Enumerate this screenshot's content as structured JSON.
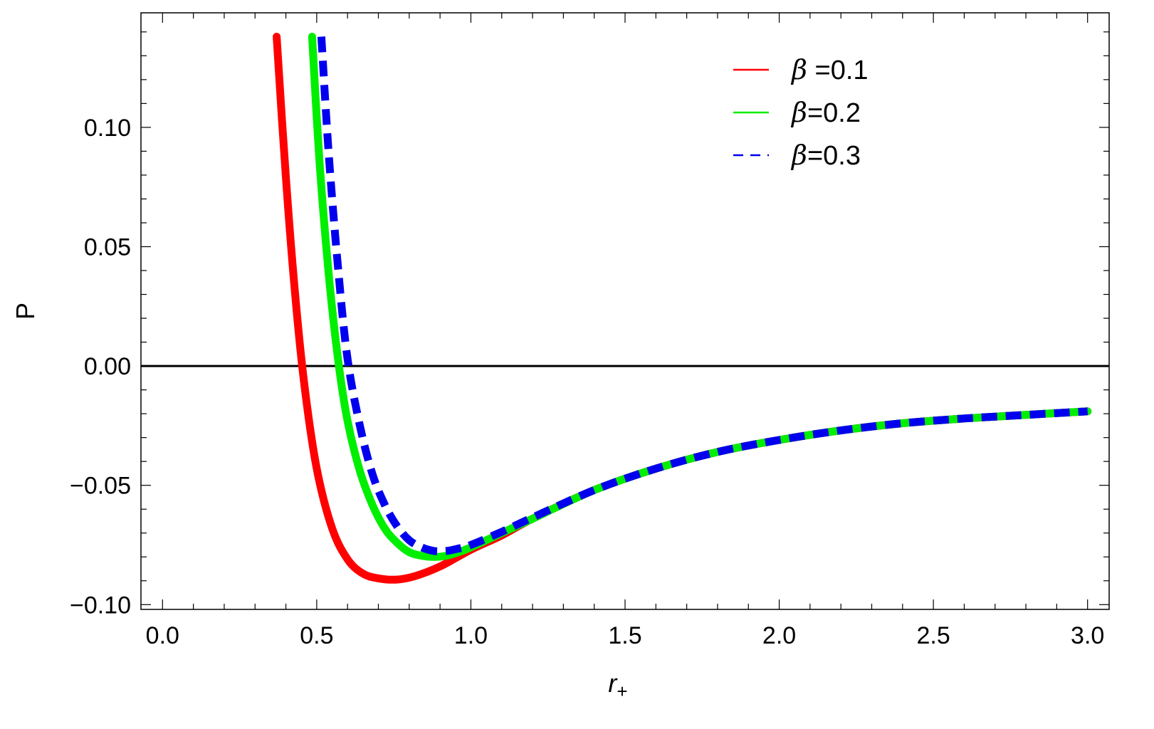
{
  "chart_data": {
    "type": "line",
    "title": "",
    "xlabel": "r",
    "xlabel_subscript": "+",
    "ylabel": "P",
    "xlim": [
      -0.07,
      3.07
    ],
    "ylim": [
      -0.102,
      0.148
    ],
    "x_ticks": [
      0.0,
      0.5,
      1.0,
      1.5,
      2.0,
      2.5,
      3.0
    ],
    "x_tick_labels": [
      "0.0",
      "0.5",
      "1.0",
      "1.5",
      "2.0",
      "2.5",
      "3.0"
    ],
    "y_ticks": [
      -0.1,
      -0.05,
      0.0,
      0.05,
      0.1
    ],
    "y_tick_labels": [
      "−0.10",
      "−0.05",
      "0.00",
      "0.05",
      "0.10"
    ],
    "grid": false,
    "zero_line": true,
    "legend_position": "top-right",
    "series": [
      {
        "name": "β =0.1",
        "color": "#ff0000",
        "style": "solid",
        "x": [
          0.37,
          0.4,
          0.43,
          0.46,
          0.5,
          0.55,
          0.6,
          0.65,
          0.7,
          0.76,
          0.82,
          0.9,
          1.0,
          1.1,
          1.2,
          1.4,
          1.6,
          1.8,
          2.0,
          2.2,
          2.4,
          2.6,
          2.8,
          3.0
        ],
        "y": [
          0.138,
          0.079,
          0.03,
          -0.008,
          -0.043,
          -0.068,
          -0.081,
          -0.087,
          -0.089,
          -0.0895,
          -0.088,
          -0.084,
          -0.077,
          -0.071,
          -0.064,
          -0.052,
          -0.043,
          -0.036,
          -0.031,
          -0.027,
          -0.024,
          -0.022,
          -0.0205,
          -0.019
        ]
      },
      {
        "name": "β=0.2",
        "color": "#00ee00",
        "style": "solid",
        "x": [
          0.485,
          0.51,
          0.54,
          0.57,
          0.6,
          0.64,
          0.68,
          0.72,
          0.76,
          0.8,
          0.84,
          0.88,
          0.92,
          0.96,
          1.0,
          1.1,
          1.2,
          1.4,
          1.6,
          1.8,
          2.0,
          2.2,
          2.4,
          2.6,
          2.8,
          3.0
        ],
        "y": [
          0.138,
          0.084,
          0.037,
          0.002,
          -0.023,
          -0.044,
          -0.058,
          -0.068,
          -0.074,
          -0.078,
          -0.0795,
          -0.08,
          -0.0795,
          -0.078,
          -0.076,
          -0.07,
          -0.064,
          -0.052,
          -0.043,
          -0.036,
          -0.031,
          -0.027,
          -0.024,
          -0.022,
          -0.0205,
          -0.019
        ]
      },
      {
        "name": "β=0.3",
        "color": "#0000ee",
        "style": "dashed",
        "x": [
          0.515,
          0.54,
          0.57,
          0.6,
          0.64,
          0.68,
          0.72,
          0.76,
          0.8,
          0.84,
          0.88,
          0.92,
          0.96,
          1.0,
          1.1,
          1.2,
          1.4,
          1.6,
          1.8,
          2.0,
          2.2,
          2.4,
          2.6,
          2.8,
          3.0
        ],
        "y": [
          0.138,
          0.087,
          0.04,
          0.003,
          -0.025,
          -0.045,
          -0.058,
          -0.067,
          -0.073,
          -0.076,
          -0.0775,
          -0.0775,
          -0.0765,
          -0.075,
          -0.0695,
          -0.0635,
          -0.052,
          -0.043,
          -0.036,
          -0.031,
          -0.027,
          -0.024,
          -0.022,
          -0.0205,
          -0.019
        ]
      }
    ]
  }
}
